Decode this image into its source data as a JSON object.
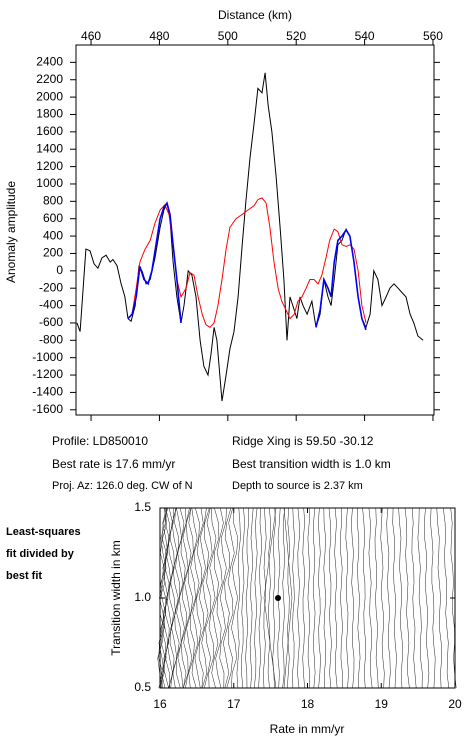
{
  "chart_data": [
    {
      "type": "line",
      "x_label": "Distance (km)",
      "y_label": "Anomaly amplitude",
      "xlim": [
        455.6,
        560.3
      ],
      "ylim": [
        -1660,
        2600
      ],
      "xticks": [
        460,
        480,
        500,
        520,
        540,
        560
      ],
      "yticks": [
        -1600,
        -1400,
        -1200,
        -1000,
        -800,
        -600,
        -400,
        -200,
        0,
        200,
        400,
        600,
        800,
        1000,
        1200,
        1400,
        1600,
        1800,
        2000,
        2200,
        2400
      ],
      "series": [
        {
          "color": "#000000",
          "x": [
            455.9,
            456.8,
            458.5,
            459.7,
            460.9,
            462.0,
            463.2,
            464.4,
            465.6,
            466.4,
            467.6,
            468.8,
            469.9,
            470.8,
            471.7,
            472.9,
            474.0,
            474.9,
            476.1,
            477.3,
            478.7,
            480.2,
            481.3,
            482.2,
            483.1,
            484.0,
            485.1,
            486.3,
            487.2,
            488.4,
            489.5,
            490.7,
            491.9,
            493.0,
            494.2,
            495.1,
            496.0,
            496.8,
            498.3,
            499.5,
            500.6,
            501.8,
            503.0,
            504.2,
            505.3,
            506.5,
            507.7,
            508.8,
            510.0,
            510.9,
            511.8,
            512.9,
            514.1,
            515.3,
            516.4,
            517.3,
            518.2,
            519.4,
            520.2,
            521.1,
            522.0,
            523.2,
            524.6,
            525.8,
            527.0,
            528.1,
            529.3,
            530.2,
            531.1,
            532.2,
            533.4,
            534.6,
            535.7,
            536.9,
            538.1,
            539.2,
            540.4,
            541.6,
            542.7,
            543.9,
            545.1,
            546.3,
            547.4,
            548.6,
            549.8,
            550.9,
            552.1,
            553.3,
            554.4,
            555.6,
            557.1
          ],
          "values": [
            -600,
            -700,
            250,
            230,
            80,
            30,
            150,
            180,
            100,
            130,
            60,
            -150,
            -300,
            -550,
            -580,
            -400,
            50,
            0,
            -150,
            -100,
            150,
            500,
            700,
            780,
            600,
            100,
            -300,
            -600,
            -400,
            0,
            -50,
            -300,
            -800,
            -1100,
            -1200,
            -950,
            -650,
            -800,
            -1500,
            -1200,
            -900,
            -700,
            -300,
            300,
            800,
            1300,
            1700,
            2100,
            2050,
            2280,
            1900,
            1600,
            1100,
            500,
            -100,
            -800,
            -300,
            -450,
            -550,
            -300,
            -400,
            -500,
            -350,
            -650,
            -500,
            -100,
            -300,
            -400,
            -100,
            300,
            350,
            480,
            400,
            100,
            -300,
            -550,
            -650,
            -500,
            0,
            -100,
            -400,
            -300,
            -200,
            -150,
            -200,
            -250,
            -300,
            -500,
            -600,
            -750,
            -800
          ]
        },
        {
          "color": "#ff0000",
          "x": [
            470.8,
            472.0,
            473.2,
            474.3,
            475.8,
            477.3,
            478.7,
            480.2,
            481.6,
            482.8,
            484.0,
            485.1,
            486.3,
            487.8,
            488.9,
            490.1,
            491.3,
            492.5,
            493.6,
            494.8,
            496.0,
            497.1,
            498.3,
            499.5,
            500.6,
            502.4,
            504.2,
            505.9,
            507.7,
            508.8,
            510.0,
            511.2,
            512.3,
            513.5,
            514.7,
            515.8,
            517.0,
            518.2,
            519.4,
            520.5,
            521.7,
            522.9,
            524.0,
            525.2,
            526.4,
            527.5,
            528.7,
            529.8,
            531.1,
            532.2,
            533.4,
            534.6,
            535.7,
            536.9,
            538.1,
            539.2,
            540.4
          ],
          "values": [
            -550,
            -500,
            -200,
            100,
            250,
            350,
            550,
            700,
            760,
            650,
            300,
            -100,
            -300,
            -200,
            -20,
            -50,
            -300,
            -500,
            -620,
            -650,
            -600,
            -400,
            -100,
            250,
            500,
            600,
            650,
            700,
            750,
            820,
            840,
            780,
            500,
            100,
            -200,
            -350,
            -450,
            -550,
            -500,
            -350,
            -300,
            -200,
            -100,
            -100,
            -150,
            -50,
            150,
            350,
            480,
            450,
            300,
            280,
            300,
            250,
            0,
            -400,
            -600
          ]
        },
        {
          "color": "#0000ff",
          "x": [
            470.8,
            472.0,
            473.2,
            474.3,
            475.5,
            476.7,
            477.8,
            479.0,
            480.2,
            481.3,
            482.2,
            483.1,
            484.0,
            485.1,
            486.3,
            null,
            525.8,
            527.0,
            528.1,
            529.3,
            530.2,
            531.1,
            532.2,
            533.4,
            534.6,
            535.7,
            536.9,
            538.1,
            539.2,
            540.4
          ],
          "values": [
            -550,
            -500,
            -300,
            50,
            -100,
            -150,
            0,
            300,
            600,
            730,
            780,
            650,
            300,
            -100,
            -600,
            null,
            -650,
            -450,
            -100,
            -200,
            -300,
            100,
            350,
            400,
            470,
            400,
            100,
            -300,
            -550,
            -680
          ]
        }
      ]
    },
    {
      "type": "contour",
      "x_label": "Rate in mm/yr",
      "y_label": "Transition width in km",
      "xlim": [
        16,
        20
      ],
      "ylim": [
        0.5,
        1.5
      ],
      "xticks": [
        16,
        17,
        18,
        19,
        20
      ],
      "yticks": [
        {
          "value": 0.5,
          "label": "0.5"
        },
        {
          "value": 1,
          "label": "1.0"
        },
        {
          "value": 1.5,
          "label": "1.5"
        }
      ],
      "marker": {
        "x": 17.6,
        "y": 1
      }
    }
  ],
  "info": {
    "left": [
      "Profile: LD850010",
      "Best rate is 17.6 mm/yr",
      "Proj. Az: 126.0 deg. CW of N"
    ],
    "right": [
      "Ridge Xing is 59.50 -30.12",
      "Best transition width is 1.0 km",
      "Depth to source is   2.37 km"
    ]
  },
  "side_note": [
    "Least-squares",
    "fit divided by",
    "best fit"
  ]
}
